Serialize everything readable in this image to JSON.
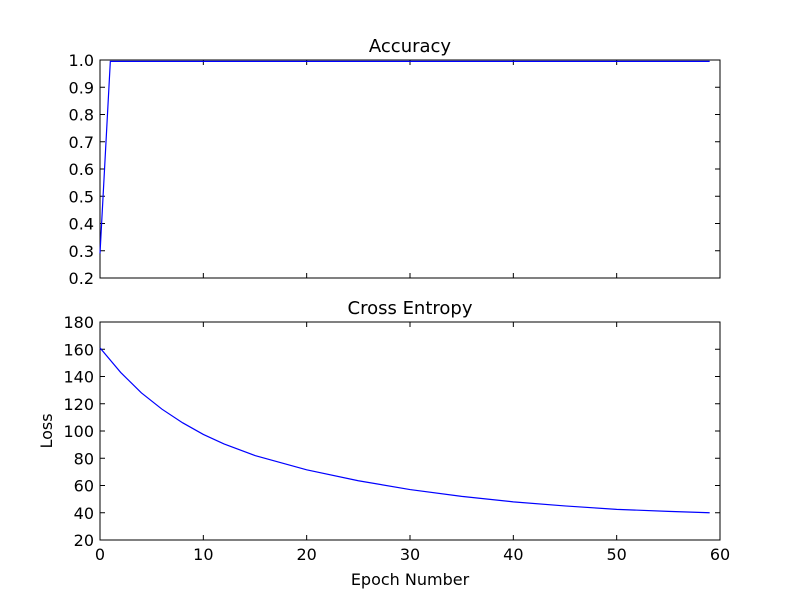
{
  "chart_data": [
    {
      "type": "line",
      "title": "Accuracy",
      "xlabel": "",
      "ylabel": "",
      "xlim": [
        0,
        60
      ],
      "ylim": [
        0.2,
        1.0
      ],
      "x_ticks": [
        0,
        10,
        20,
        30,
        40,
        50,
        60
      ],
      "y_ticks": [
        "0.2",
        "0.3",
        "0.4",
        "0.5",
        "0.6",
        "0.7",
        "0.8",
        "0.9",
        "1.0"
      ],
      "show_x_tick_labels": false,
      "grid": false,
      "series": [
        {
          "color": "#0000ff",
          "x": [
            0,
            1,
            2,
            3,
            4,
            5,
            10,
            20,
            30,
            40,
            50,
            59
          ],
          "y": [
            0.29,
            0.995,
            0.995,
            0.995,
            0.995,
            0.995,
            0.995,
            0.995,
            0.995,
            0.995,
            0.995,
            0.995
          ]
        }
      ]
    },
    {
      "type": "line",
      "title": "Cross Entropy",
      "xlabel": "Epoch Number",
      "ylabel": "Loss",
      "xlim": [
        0,
        60
      ],
      "ylim": [
        20,
        180
      ],
      "x_ticks": [
        "0",
        "10",
        "20",
        "30",
        "40",
        "50",
        "60"
      ],
      "y_ticks": [
        "20",
        "40",
        "60",
        "80",
        "100",
        "120",
        "140",
        "160",
        "180"
      ],
      "show_x_tick_labels": true,
      "grid": false,
      "series": [
        {
          "color": "#0000ff",
          "x": [
            0,
            2,
            4,
            6,
            8,
            10,
            12,
            15,
            20,
            25,
            30,
            35,
            40,
            45,
            50,
            55,
            59
          ],
          "y": [
            161,
            143,
            128,
            116,
            106,
            97.5,
            90.5,
            82,
            71.5,
            63.5,
            57,
            52,
            48,
            45,
            42.5,
            41,
            40
          ]
        }
      ]
    }
  ]
}
